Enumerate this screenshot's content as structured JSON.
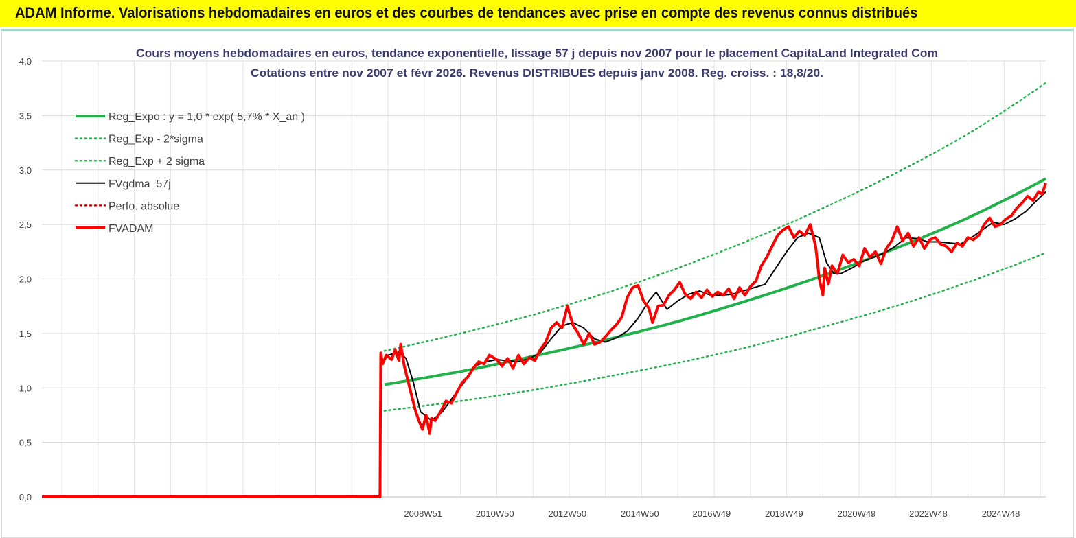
{
  "banner": {
    "text": "ADAM Informe. Valorisations hebdomadaires en euros et des courbes de tendances avec prise en compte des revenus connus distribués",
    "background": "#ffff00"
  },
  "chart_data": {
    "type": "line",
    "title_line1": "Cours moyens hebdomadaires en euros, tendance exponentielle, lissage 57 j depuis nov 2007  pour le placement CapitaLand Integrated Com",
    "title_line2": "Cotations entre nov 2007 et févr  2026. Revenus DISTRIBUES depuis janv 2008. Reg. croiss. : 18,8/20.",
    "y_ticks": [
      "0,0",
      "0,5",
      "1,0",
      "1,5",
      "2,0",
      "2,5",
      "3,0",
      "3,5",
      "4,0"
    ],
    "ylim": [
      0,
      4
    ],
    "xlim": [
      1998.45,
      2026.15
    ],
    "x_ticks": [
      {
        "label": "2008W51",
        "x": 2008.97
      },
      {
        "label": "2010W50",
        "x": 2010.95
      },
      {
        "label": "2012W50",
        "x": 2012.95
      },
      {
        "label": "2014W50",
        "x": 2014.95
      },
      {
        "label": "2016W49",
        "x": 2016.93
      },
      {
        "label": "2018W49",
        "x": 2018.93
      },
      {
        "label": "2020W49",
        "x": 2020.93
      },
      {
        "label": "2022W48",
        "x": 2022.91
      },
      {
        "label": "2024W48",
        "x": 2024.91
      }
    ],
    "grid": true,
    "legend_position": "top-left",
    "series": [
      {
        "name": "Reg_Expo : y = 1,0 * exp( 5,7% *  X_an )",
        "color": "#22b04b",
        "style": "solid-thick",
        "x": [
          2007.9,
          2010,
          2012,
          2014,
          2016,
          2018,
          2020,
          2022,
          2024,
          2026.15
        ],
        "y": [
          1.03,
          1.15,
          1.29,
          1.44,
          1.61,
          1.81,
          2.03,
          2.28,
          2.56,
          2.92
        ]
      },
      {
        "name": "Reg_Exp - 2*sigma",
        "color": "#22b04b",
        "style": "dotted",
        "x": [
          2007.9,
          2010,
          2012,
          2014,
          2016,
          2018,
          2020,
          2022,
          2024,
          2026.15
        ],
        "y": [
          0.79,
          0.88,
          0.98,
          1.1,
          1.23,
          1.38,
          1.56,
          1.75,
          1.97,
          2.24
        ]
      },
      {
        "name": "Reg_Exp + 2 sigma",
        "color": "#22b04b",
        "style": "dotted",
        "x": [
          2007.9,
          2010,
          2012,
          2014,
          2016,
          2018,
          2020,
          2022,
          2024,
          2026.15
        ],
        "y": [
          1.34,
          1.5,
          1.67,
          1.87,
          2.1,
          2.36,
          2.65,
          2.97,
          3.33,
          3.8
        ]
      },
      {
        "name": "FVgdma_57j",
        "color": "#000000",
        "style": "solid",
        "x": [
          2007.9,
          2008.0,
          2008.3,
          2008.5,
          2008.7,
          2008.9,
          2009.2,
          2009.5,
          2009.8,
          2010.1,
          2010.4,
          2010.7,
          2011.0,
          2011.3,
          2011.6,
          2011.9,
          2012.2,
          2012.5,
          2012.8,
          2013.1,
          2013.4,
          2013.7,
          2014.0,
          2014.3,
          2014.6,
          2014.9,
          2015.2,
          2015.4,
          2015.7,
          2016.0,
          2016.3,
          2016.6,
          2016.9,
          2017.2,
          2017.5,
          2017.8,
          2018.1,
          2018.4,
          2018.7,
          2019.0,
          2019.3,
          2019.6,
          2019.9,
          2020.1,
          2020.3,
          2020.5,
          2020.8,
          2021.1,
          2021.4,
          2021.7,
          2022.0,
          2022.3,
          2022.6,
          2022.9,
          2023.2,
          2023.5,
          2023.8,
          2024.1,
          2024.4,
          2024.7,
          2025.0,
          2025.3,
          2025.6,
          2025.9,
          2026.15
        ],
        "y": [
          1.25,
          1.3,
          1.33,
          1.27,
          1.05,
          0.78,
          0.7,
          0.78,
          0.92,
          1.05,
          1.2,
          1.24,
          1.26,
          1.25,
          1.24,
          1.27,
          1.32,
          1.45,
          1.57,
          1.6,
          1.55,
          1.45,
          1.42,
          1.46,
          1.52,
          1.64,
          1.8,
          1.88,
          1.72,
          1.8,
          1.86,
          1.89,
          1.85,
          1.85,
          1.86,
          1.89,
          1.92,
          1.95,
          2.1,
          2.25,
          2.38,
          2.42,
          2.38,
          2.15,
          2.05,
          2.05,
          2.1,
          2.16,
          2.2,
          2.24,
          2.3,
          2.38,
          2.37,
          2.34,
          2.34,
          2.33,
          2.32,
          2.38,
          2.45,
          2.52,
          2.5,
          2.55,
          2.62,
          2.72,
          2.8
        ]
      },
      {
        "name": "Perfo. absolue",
        "color": "#cc0000",
        "style": "dotted",
        "x": [],
        "y": []
      },
      {
        "name": "FVADAM",
        "color": "#ff0000",
        "style": "solid-thick",
        "x": [
          1998.45,
          2007.75,
          2007.78,
          2007.8,
          2007.85,
          2007.95,
          2008.1,
          2008.2,
          2008.3,
          2008.35,
          2008.45,
          2008.6,
          2008.75,
          2008.85,
          2008.95,
          2009.05,
          2009.15,
          2009.2,
          2009.3,
          2009.45,
          2009.6,
          2009.75,
          2009.9,
          2010.05,
          2010.2,
          2010.35,
          2010.5,
          2010.65,
          2010.8,
          2011.0,
          2011.15,
          2011.3,
          2011.45,
          2011.6,
          2011.75,
          2011.9,
          2012.05,
          2012.2,
          2012.35,
          2012.5,
          2012.65,
          2012.8,
          2012.95,
          2013.1,
          2013.25,
          2013.4,
          2013.55,
          2013.7,
          2013.85,
          2014.0,
          2014.15,
          2014.3,
          2014.45,
          2014.6,
          2014.75,
          2014.9,
          2015.05,
          2015.2,
          2015.3,
          2015.45,
          2015.6,
          2015.75,
          2015.9,
          2016.05,
          2016.2,
          2016.35,
          2016.5,
          2016.65,
          2016.8,
          2016.95,
          2017.1,
          2017.25,
          2017.4,
          2017.55,
          2017.7,
          2017.85,
          2018.0,
          2018.15,
          2018.3,
          2018.45,
          2018.6,
          2018.75,
          2018.9,
          2019.05,
          2019.2,
          2019.35,
          2019.5,
          2019.65,
          2019.8,
          2019.9,
          2020.0,
          2020.05,
          2020.15,
          2020.25,
          2020.4,
          2020.55,
          2020.7,
          2020.85,
          2021.0,
          2021.15,
          2021.3,
          2021.45,
          2021.6,
          2021.75,
          2021.9,
          2022.05,
          2022.2,
          2022.35,
          2022.5,
          2022.65,
          2022.8,
          2022.95,
          2023.1,
          2023.25,
          2023.4,
          2023.55,
          2023.7,
          2023.85,
          2024.0,
          2024.15,
          2024.3,
          2024.45,
          2024.6,
          2024.75,
          2024.9,
          2025.05,
          2025.2,
          2025.35,
          2025.5,
          2025.65,
          2025.8,
          2025.95,
          2026.05,
          2026.15
        ],
        "y": [
          0.0,
          0.0,
          0.0,
          1.32,
          1.22,
          1.3,
          1.26,
          1.35,
          1.25,
          1.4,
          1.2,
          1.0,
          0.8,
          0.7,
          0.62,
          0.75,
          0.58,
          0.72,
          0.7,
          0.78,
          0.88,
          0.86,
          0.96,
          1.05,
          1.1,
          1.18,
          1.24,
          1.22,
          1.3,
          1.26,
          1.2,
          1.27,
          1.18,
          1.3,
          1.22,
          1.28,
          1.25,
          1.35,
          1.42,
          1.55,
          1.6,
          1.55,
          1.75,
          1.58,
          1.5,
          1.4,
          1.5,
          1.4,
          1.42,
          1.47,
          1.53,
          1.58,
          1.65,
          1.83,
          1.92,
          1.94,
          1.8,
          1.73,
          1.6,
          1.75,
          1.76,
          1.85,
          1.9,
          1.97,
          1.86,
          1.82,
          1.88,
          1.83,
          1.9,
          1.84,
          1.88,
          1.85,
          1.91,
          1.82,
          1.92,
          1.85,
          1.93,
          1.98,
          2.12,
          2.2,
          2.3,
          2.4,
          2.45,
          2.48,
          2.38,
          2.44,
          2.4,
          2.5,
          2.3,
          2.0,
          1.85,
          2.1,
          1.95,
          2.12,
          2.05,
          2.22,
          2.15,
          2.18,
          2.12,
          2.28,
          2.2,
          2.25,
          2.14,
          2.28,
          2.35,
          2.48,
          2.35,
          2.42,
          2.3,
          2.38,
          2.28,
          2.36,
          2.38,
          2.32,
          2.3,
          2.25,
          2.33,
          2.3,
          2.38,
          2.36,
          2.4,
          2.5,
          2.56,
          2.48,
          2.5,
          2.55,
          2.58,
          2.65,
          2.7,
          2.76,
          2.72,
          2.8,
          2.78,
          2.88
        ]
      }
    ]
  }
}
